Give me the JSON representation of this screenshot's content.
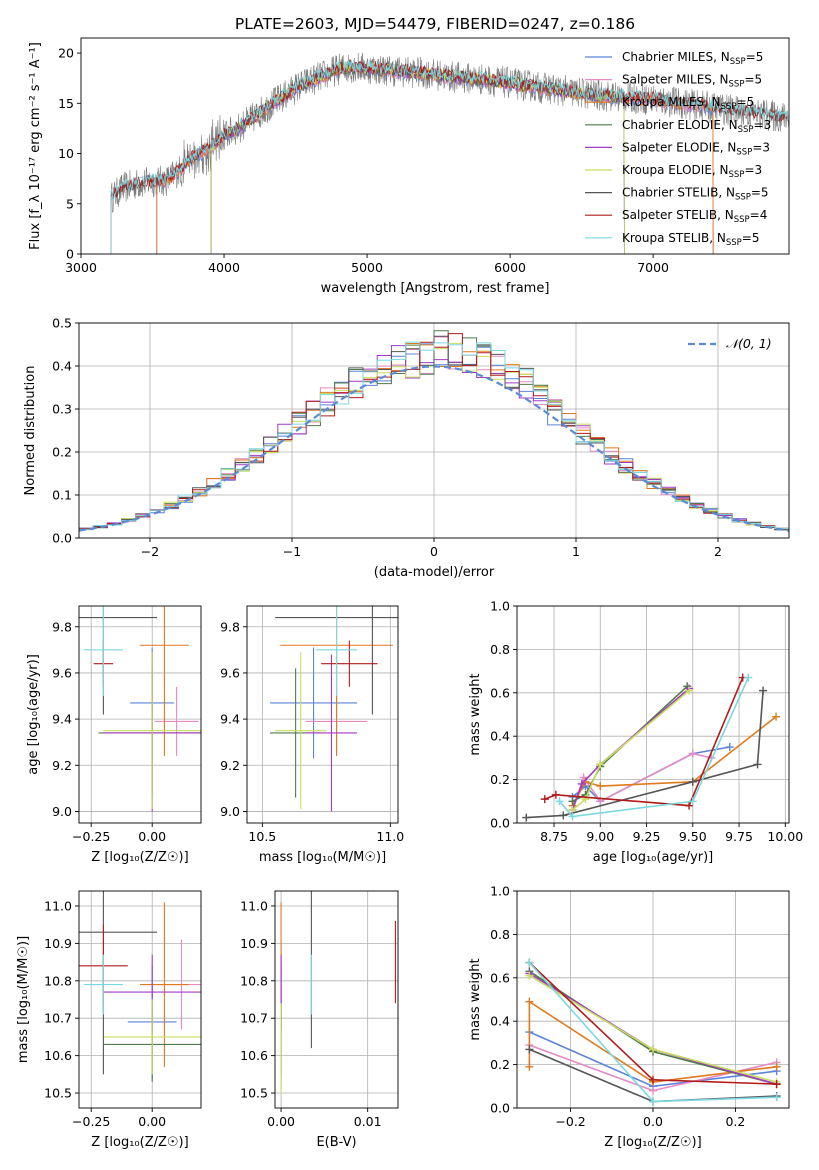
{
  "title": "PLATE=2603, MJD=54479, FIBERID=0247, z=0.186",
  "colors": {
    "Chabrier MILES": "#5b84d8",
    "Salpeter MILES": "#e58ac6",
    "Kroupa MILES": "#e07a1e",
    "Chabrier ELODIE": "#4f7a4a",
    "Salpeter ELODIE": "#a23bc7",
    "Kroupa ELODIE": "#c9de5e",
    "Chabrier STELIB": "#555555",
    "Salpeter STELIB": "#b01c1c",
    "Kroupa STELIB": "#7ad8e0",
    "data_gray": "#7a7a7a",
    "normal_curve": "#5b8bd6"
  },
  "chart_data": [
    {
      "id": "spectrum",
      "type": "line",
      "title": "PLATE=2603, MJD=54479, FIBERID=0247, z=0.186",
      "xlabel": "wavelength [Angstrom, rest frame]",
      "ylabel": "Flux [f_λ 10⁻¹⁷ erg cm⁻² s⁻¹ A⁻¹]",
      "xlim": [
        3000,
        7950
      ],
      "ylim": [
        0,
        21.5
      ],
      "xticks": [
        3000,
        4000,
        5000,
        6000,
        7000
      ],
      "yticks": [
        0,
        5,
        10,
        15,
        20
      ],
      "grid": false,
      "legend_position": "top-right",
      "x": [
        3210,
        3300,
        3400,
        3500,
        3600,
        3700,
        3800,
        3900,
        4000,
        4100,
        4200,
        4300,
        4400,
        4500,
        4600,
        4700,
        4800,
        4900,
        5000,
        5200,
        5400,
        5600,
        5800,
        6000,
        6200,
        6400,
        6600,
        6800,
        7000,
        7200,
        7400,
        7600,
        7900
      ],
      "y": [
        5.6,
        6.6,
        7.0,
        7.2,
        7.3,
        8.5,
        9.8,
        10.5,
        11.8,
        12.5,
        13.5,
        14.6,
        15.5,
        16.5,
        17.2,
        17.8,
        18.4,
        18.6,
        18.5,
        18.2,
        18.0,
        17.6,
        17.4,
        17.0,
        16.6,
        16.2,
        15.8,
        15.6,
        15.4,
        15.0,
        14.6,
        14.2,
        13.6
      ],
      "model_start_wavelength": [
        3210,
        3210,
        3210,
        3210,
        3210,
        3210,
        3210,
        3210,
        3210
      ],
      "series": [
        {
          "name": "Chabrier MILES, N_SSP=5",
          "label": "Chabrier MILES, N",
          "sub": "SSP",
          "suffix": "=5",
          "color": "#5b84d8",
          "start": 3530,
          "end": 7420
        },
        {
          "name": "Salpeter MILES, N_SSP=5",
          "label": "Salpeter MILES, N",
          "sub": "SSP",
          "suffix": "=5",
          "color": "#e58ac6",
          "start": 3530,
          "end": 7420
        },
        {
          "name": "Kroupa MILES, N_SSP=5",
          "label": "Kroupa MILES, N",
          "sub": "SSP",
          "suffix": "=5",
          "color": "#e07a1e",
          "start": 3530,
          "end": 7420
        },
        {
          "name": "Chabrier ELODIE, N_SSP=3",
          "label": "Chabrier ELODIE, N",
          "sub": "SSP",
          "suffix": "=3",
          "color": "#4f7a4a",
          "start": 3910,
          "end": 6800
        },
        {
          "name": "Salpeter ELODIE, N_SSP=3",
          "label": "Salpeter ELODIE, N",
          "sub": "SSP",
          "suffix": "=3",
          "color": "#a23bc7",
          "start": 3910,
          "end": 6800
        },
        {
          "name": "Kroupa ELODIE, N_SSP=3",
          "label": "Kroupa ELODIE, N",
          "sub": "SSP",
          "suffix": "=3",
          "color": "#c9de5e",
          "start": 3910,
          "end": 6800
        },
        {
          "name": "Chabrier STELIB, N_SSP=5",
          "label": "Chabrier STELIB, N",
          "sub": "SSP",
          "suffix": "=5",
          "color": "#555555",
          "start": 3210,
          "end": 7950
        },
        {
          "name": "Salpeter STELIB, N_SSP=4",
          "label": "Salpeter STELIB, N",
          "sub": "SSP",
          "suffix": "=4",
          "color": "#b01c1c",
          "start": 3210,
          "end": 7950
        },
        {
          "name": "Kroupa STELIB, N_SSP=5",
          "label": "Kroupa STELIB, N",
          "sub": "SSP",
          "suffix": "=5",
          "color": "#7ad8e0",
          "start": 3210,
          "end": 7950
        }
      ]
    },
    {
      "id": "residuals",
      "type": "histogram",
      "xlabel": "(data-model)/error",
      "ylabel": "Normed distribution",
      "xlim": [
        -2.5,
        2.5
      ],
      "ylim": [
        0,
        0.5
      ],
      "xticks": [
        -2,
        -1,
        0,
        1,
        2
      ],
      "yticks": [
        0.0,
        0.1,
        0.2,
        0.3,
        0.4,
        0.5
      ],
      "grid": true,
      "legend": "𝒩(0, 1)",
      "legend_position": "top-right",
      "bin_width": 0.1,
      "bin_start": -2.5,
      "base_values": [
        0.02,
        0.025,
        0.03,
        0.035,
        0.04,
        0.045,
        0.05,
        0.055,
        0.06,
        0.07,
        0.075,
        0.08,
        0.09,
        0.1,
        0.11,
        0.12,
        0.13,
        0.14,
        0.16,
        0.18,
        0.2,
        0.21,
        0.22,
        0.24,
        0.26,
        0.28,
        0.3,
        0.32,
        0.34,
        0.36,
        0.38,
        0.39,
        0.4,
        0.41,
        0.41,
        0.4,
        0.41,
        0.42,
        0.43,
        0.42,
        0.4,
        0.39,
        0.38,
        0.36,
        0.34,
        0.31,
        0.29,
        0.27,
        0.24,
        0.22,
        0.21,
        0.19,
        0.17,
        0.15,
        0.13,
        0.12,
        0.1,
        0.09,
        0.08,
        0.07,
        0.06,
        0.055,
        0.05,
        0.04,
        0.035,
        0.03,
        0.028,
        0.025,
        0.022,
        0.02,
        0.018,
        0.016,
        0.015,
        0.014,
        0.013,
        0.012,
        0.011,
        0.01,
        0.01,
        0.009,
        0.009,
        0.008,
        0.008,
        0.007,
        0.007,
        0.006,
        0.006,
        0.005,
        0.005,
        0.005,
        0.004,
        0.004,
        0.004,
        0.004,
        0.003,
        0.003,
        0.003,
        0.003,
        0.003,
        0.002
      ],
      "normal": {
        "mu": 0,
        "sigma": 1
      }
    },
    {
      "id": "age-vs-Z",
      "type": "errorbar",
      "xlabel": "Z [log₁₀(Z/Z☉)]",
      "ylabel": "age  [log₁₀(age/yr)]",
      "xlim": [
        -0.3,
        0.2
      ],
      "ylim": [
        8.95,
        9.89
      ],
      "xticks": [
        -0.25,
        0.0
      ],
      "yticks": [
        9.0,
        9.2,
        9.4,
        9.6,
        9.8
      ],
      "grid": true,
      "points": [
        {
          "x": 0.0,
          "y": 9.47,
          "xerr": 0.09,
          "yerr": 0.24,
          "color": "#5b84d8"
        },
        {
          "x": 0.1,
          "y": 9.39,
          "xerr": 0.09,
          "yerr": 0.15,
          "color": "#e58ac6"
        },
        {
          "x": 0.05,
          "y": 9.72,
          "xerr": 0.1,
          "yerr": 0.48,
          "color": "#e07a1e"
        },
        {
          "x": 0.0,
          "y": 9.34,
          "xerr": 0.22,
          "yerr": 0.28,
          "color": "#4f7a4a"
        },
        {
          "x": 0.0,
          "y": 9.34,
          "xerr": 0.2,
          "yerr": 0.34,
          "color": "#a23bc7"
        },
        {
          "x": 0.0,
          "y": 9.35,
          "xerr": 0.2,
          "yerr": 0.34,
          "color": "#c9de5e"
        },
        {
          "x": -0.2,
          "y": 9.84,
          "xerr": 0.22,
          "yerr": 0.42,
          "color": "#555555"
        },
        {
          "x": -0.2,
          "y": 9.64,
          "xerr": 0.04,
          "yerr": 0.1,
          "color": "#b01c1c"
        },
        {
          "x": -0.2,
          "y": 9.7,
          "xerr": 0.08,
          "yerr": 0.2,
          "color": "#7ad8e0"
        }
      ]
    },
    {
      "id": "age-vs-mass",
      "type": "errorbar",
      "xlabel": "mass [log₁₀(M/M☉)]",
      "ylabel": "",
      "xlim": [
        10.44,
        11.03
      ],
      "ylim": [
        8.95,
        9.89
      ],
      "xticks": [
        10.5,
        11.0
      ],
      "yticks": [
        9.0,
        9.2,
        9.4,
        9.6,
        9.8
      ],
      "grid": true,
      "points": [
        {
          "x": 10.7,
          "y": 9.47,
          "xerr": 0.17,
          "yerr": 0.24,
          "color": "#5b84d8"
        },
        {
          "x": 10.79,
          "y": 9.39,
          "xerr": 0.12,
          "yerr": 0.15,
          "color": "#e58ac6"
        },
        {
          "x": 10.79,
          "y": 9.72,
          "xerr": 0.22,
          "yerr": 0.48,
          "color": "#e07a1e"
        },
        {
          "x": 10.63,
          "y": 9.34,
          "xerr": 0.1,
          "yerr": 0.28,
          "color": "#4f7a4a"
        },
        {
          "x": 10.77,
          "y": 9.34,
          "xerr": 0.1,
          "yerr": 0.34,
          "color": "#a23bc7"
        },
        {
          "x": 10.65,
          "y": 9.35,
          "xerr": 0.1,
          "yerr": 0.34,
          "color": "#c9de5e"
        },
        {
          "x": 10.93,
          "y": 9.84,
          "xerr": 0.38,
          "yerr": 0.42,
          "color": "#555555"
        },
        {
          "x": 10.84,
          "y": 9.64,
          "xerr": 0.11,
          "yerr": 0.1,
          "color": "#b01c1c"
        },
        {
          "x": 10.79,
          "y": 9.7,
          "xerr": 0.08,
          "yerr": 0.2,
          "color": "#7ad8e0"
        }
      ]
    },
    {
      "id": "mass-weight-vs-age",
      "type": "line",
      "xlabel": "age  [log₁₀(age/yr)]",
      "ylabel": "mass weight",
      "xlim": [
        8.55,
        10.02
      ],
      "ylim": [
        0,
        1.0
      ],
      "xticks": [
        8.75,
        9.0,
        9.25,
        9.5,
        9.75,
        10.0
      ],
      "yticks": [
        0.0,
        0.2,
        0.4,
        0.6,
        0.8,
        1.0
      ],
      "grid": true,
      "series": [
        {
          "color": "#5b84d8",
          "x": [
            8.85,
            8.92,
            9.0,
            9.5,
            9.7
          ],
          "y": [
            0.12,
            0.17,
            0.1,
            0.32,
            0.35
          ]
        },
        {
          "color": "#e58ac6",
          "x": [
            8.85,
            8.91,
            9.0,
            9.5,
            9.6
          ],
          "y": [
            0.06,
            0.21,
            0.1,
            0.32,
            0.3
          ]
        },
        {
          "color": "#e07a1e",
          "x": [
            8.85,
            8.92,
            9.0,
            9.5,
            9.95
          ],
          "y": [
            0.08,
            0.19,
            0.17,
            0.19,
            0.49
          ]
        },
        {
          "color": "#4f7a4a",
          "x": [
            8.85,
            8.92,
            9.0,
            9.47
          ],
          "y": [
            0.1,
            0.13,
            0.26,
            0.63
          ]
        },
        {
          "color": "#a23bc7",
          "x": [
            8.85,
            8.9,
            9.0,
            9.48
          ],
          "y": [
            0.06,
            0.18,
            0.27,
            0.62
          ]
        },
        {
          "color": "#c9de5e",
          "x": [
            8.85,
            8.92,
            9.0,
            9.48
          ],
          "y": [
            0.06,
            0.11,
            0.27,
            0.61
          ]
        },
        {
          "color": "#555555",
          "x": [
            8.6,
            8.8,
            9.5,
            9.85,
            9.88
          ],
          "y": [
            0.025,
            0.035,
            0.19,
            0.27,
            0.61
          ]
        },
        {
          "color": "#b01c1c",
          "x": [
            8.7,
            8.76,
            9.48,
            9.77
          ],
          "y": [
            0.11,
            0.13,
            0.08,
            0.67
          ]
        },
        {
          "color": "#7ad8e0",
          "x": [
            8.78,
            8.85,
            9.5,
            9.8
          ],
          "y": [
            0.1,
            0.03,
            0.1,
            0.67
          ]
        }
      ]
    },
    {
      "id": "mass-vs-Z",
      "type": "errorbar",
      "xlabel": "Z [log₁₀(Z/Z☉)]",
      "ylabel": "mass [log₁₀(M/M☉)]",
      "xlim": [
        -0.3,
        0.2
      ],
      "ylim": [
        10.46,
        11.04
      ],
      "xticks": [
        -0.25,
        0.0
      ],
      "yticks": [
        10.5,
        10.6,
        10.7,
        10.8,
        10.9,
        11.0
      ],
      "grid": true,
      "points": [
        {
          "x": 0.0,
          "y": 10.69,
          "xerr": 0.1,
          "yerr": 0.15,
          "color": "#5b84d8"
        },
        {
          "x": 0.12,
          "y": 10.79,
          "xerr": 0.1,
          "yerr": 0.12,
          "color": "#e58ac6"
        },
        {
          "x": 0.05,
          "y": 10.79,
          "xerr": 0.1,
          "yerr": 0.22,
          "color": "#e07a1e"
        },
        {
          "x": 0.0,
          "y": 10.63,
          "xerr": 0.2,
          "yerr": 0.1,
          "color": "#4f7a4a"
        },
        {
          "x": 0.0,
          "y": 10.77,
          "xerr": 0.2,
          "yerr": 0.1,
          "color": "#a23bc7"
        },
        {
          "x": 0.0,
          "y": 10.65,
          "xerr": 0.2,
          "yerr": 0.1,
          "color": "#c9de5e"
        },
        {
          "x": -0.2,
          "y": 10.93,
          "xerr": 0.22,
          "yerr": 0.38,
          "color": "#555555"
        },
        {
          "x": -0.2,
          "y": 10.84,
          "xerr": 0.1,
          "yerr": 0.11,
          "color": "#b01c1c"
        },
        {
          "x": -0.2,
          "y": 10.79,
          "xerr": 0.08,
          "yerr": 0.08,
          "color": "#7ad8e0"
        }
      ]
    },
    {
      "id": "mass-vs-ebv",
      "type": "errorbar",
      "xlabel": "E(B-V)",
      "ylabel": "",
      "xlim": [
        -0.0007,
        0.0135
      ],
      "ylim": [
        10.46,
        11.04
      ],
      "xticks": [
        0.0,
        0.01
      ],
      "yticks": [
        10.5,
        10.6,
        10.7,
        10.8,
        10.9,
        11.0
      ],
      "grid": true,
      "points": [
        {
          "x": 0.0,
          "y": 10.7,
          "xerr": 0,
          "yerr": 0.15,
          "color": "#5b84d8"
        },
        {
          "x": 0.0,
          "y": 10.79,
          "xerr": 0,
          "yerr": 0.12,
          "color": "#e58ac6"
        },
        {
          "x": 0.0,
          "y": 10.79,
          "xerr": 0,
          "yerr": 0.22,
          "color": "#e07a1e"
        },
        {
          "x": 0.0,
          "y": 10.63,
          "xerr": 0,
          "yerr": 0.12,
          "color": "#4f7a4a"
        },
        {
          "x": 0.0,
          "y": 10.77,
          "xerr": 0,
          "yerr": 0.1,
          "color": "#a23bc7"
        },
        {
          "x": 0.0,
          "y": 10.62,
          "xerr": 0,
          "yerr": 0.12,
          "color": "#c9de5e"
        },
        {
          "x": 0.0035,
          "y": 10.86,
          "xerr": 0,
          "yerr": 0.24,
          "color": "#555555"
        },
        {
          "x": 0.0132,
          "y": 10.85,
          "xerr": 0,
          "yerr": 0.11,
          "color": "#b01c1c"
        },
        {
          "x": 0.0035,
          "y": 10.79,
          "xerr": 0,
          "yerr": 0.08,
          "color": "#7ad8e0"
        }
      ]
    },
    {
      "id": "mass-weight-vs-Z",
      "type": "line",
      "xlabel": "Z [log₁₀(Z/Z☉)]",
      "ylabel": "mass weight",
      "xlim": [
        -0.33,
        0.33
      ],
      "ylim": [
        0,
        1.0
      ],
      "xticks": [
        -0.2,
        0.0,
        0.2
      ],
      "yticks": [
        0.0,
        0.2,
        0.4,
        0.6,
        0.8,
        1.0
      ],
      "grid": true,
      "series": [
        {
          "color": "#5b84d8",
          "x": [
            -0.3,
            0.0,
            0.3
          ],
          "y": [
            0.35,
            0.1,
            0.17
          ]
        },
        {
          "color": "#e58ac6",
          "x": [
            -0.3,
            0.0,
            0.3
          ],
          "y": [
            0.29,
            0.08,
            0.21
          ]
        },
        {
          "color": "#e07a1e",
          "x": [
            -0.3,
            -0.3,
            0.0,
            0.3
          ],
          "y": [
            0.19,
            0.49,
            0.12,
            0.19
          ]
        },
        {
          "color": "#4f7a4a",
          "x": [
            -0.3,
            0.0,
            0.3
          ],
          "y": [
            0.63,
            0.26,
            0.11
          ]
        },
        {
          "color": "#a23bc7",
          "x": [
            -0.3,
            0.0,
            0.3
          ],
          "y": [
            0.62,
            0.27,
            0.11
          ]
        },
        {
          "color": "#c9de5e",
          "x": [
            -0.3,
            0.0,
            0.3
          ],
          "y": [
            0.61,
            0.27,
            0.12
          ]
        },
        {
          "color": "#555555",
          "x": [
            -0.3,
            0.0,
            0.3
          ],
          "y": [
            0.27,
            0.03,
            0.055
          ]
        },
        {
          "color": "#b01c1c",
          "x": [
            -0.3,
            0.0,
            0.3
          ],
          "y": [
            0.67,
            0.13,
            0.11
          ]
        },
        {
          "color": "#7ad8e0",
          "x": [
            -0.3,
            0.0,
            0.3
          ],
          "y": [
            0.67,
            0.03,
            0.05
          ]
        }
      ]
    }
  ]
}
